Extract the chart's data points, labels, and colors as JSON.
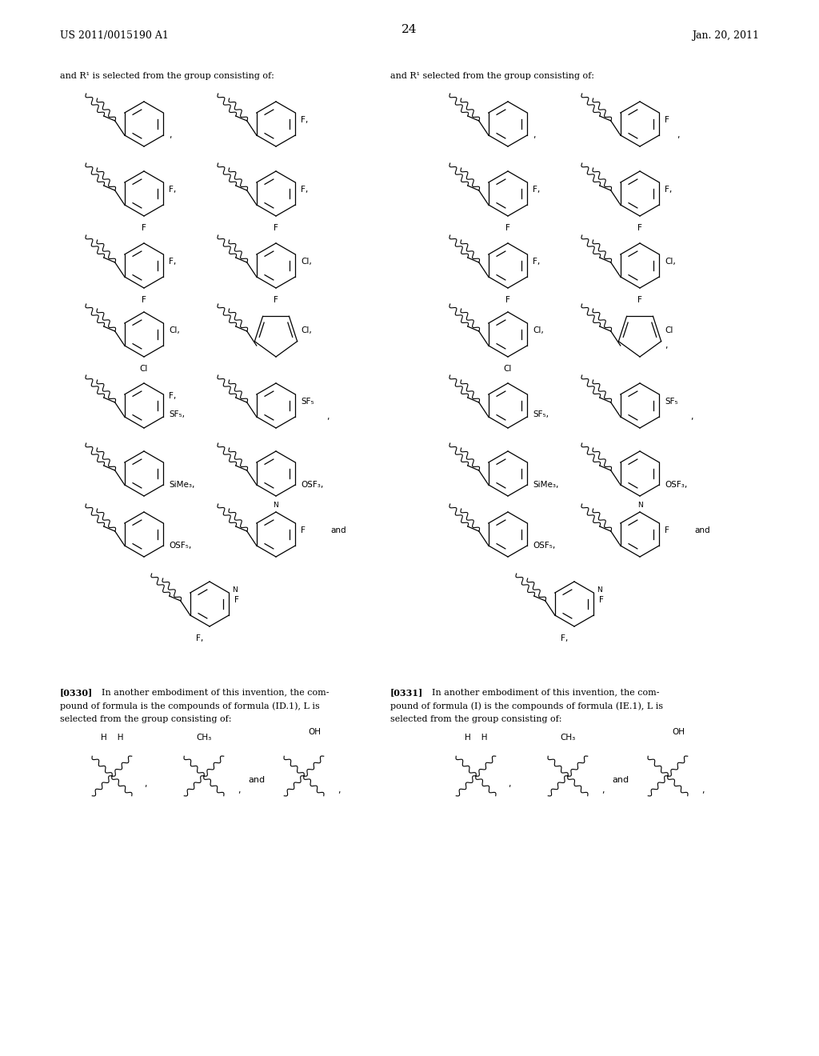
{
  "bg": "#ffffff",
  "header_left": "US 2011/0015190 A1",
  "header_right": "Jan. 20, 2011",
  "page_num": "24",
  "intro_left": "and R¹ is selected from the group consisting of:",
  "intro_right": "and R¹ selected from the group consisting of:",
  "p330": "[0330]   In another embodiment of this invention, the com-\npound of formula is the compounds of formula (ID.1), L is\nselected from the group consisting of:",
  "p331": "[0331]   In another embodiment of this invention, the com-\npound of formula (I) is the compounds of formula (IE.1), L is\nselected from the group consisting of:"
}
